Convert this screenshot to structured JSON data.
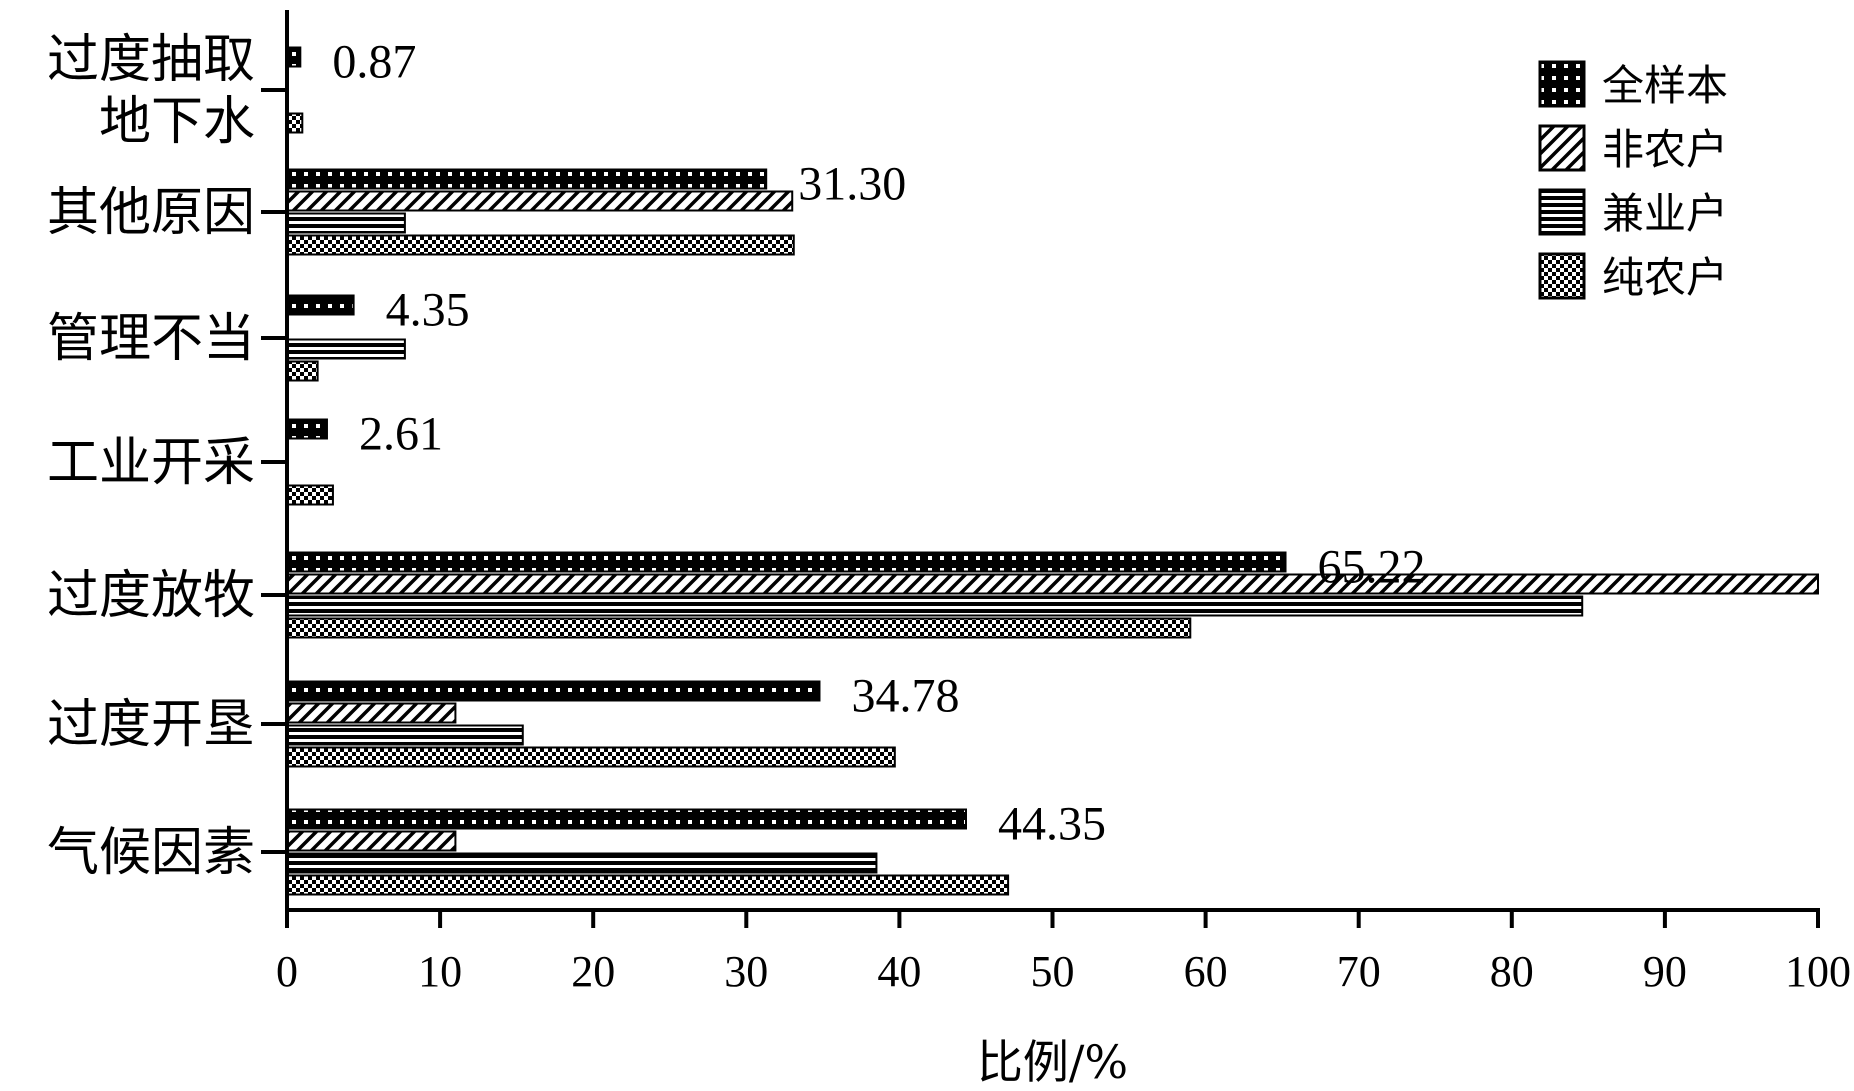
{
  "chart_data": {
    "type": "bar",
    "orientation": "horizontal",
    "categories": [
      "过度抽取\n地下水",
      "其他原因",
      "管理不当",
      "工业开采",
      "过度放牧",
      "过度开垦",
      "气候因素"
    ],
    "series": [
      {
        "name": "全样本",
        "values": [
          0.87,
          31.3,
          4.35,
          2.61,
          65.22,
          34.78,
          44.35
        ],
        "pattern": "dots-on-black"
      },
      {
        "name": "非农户",
        "values": [
          0,
          33.0,
          0,
          0,
          100.0,
          11.0,
          11.0
        ],
        "pattern": "diagonal-hatch"
      },
      {
        "name": "兼业户",
        "values": [
          0,
          7.7,
          7.7,
          0,
          84.6,
          15.4,
          38.5
        ],
        "pattern": "horizontal-lines"
      },
      {
        "name": "纯农户",
        "values": [
          1.0,
          33.1,
          2.0,
          3.0,
          59.0,
          39.7,
          47.1
        ],
        "pattern": "checker"
      }
    ],
    "data_labels": [
      "0.87",
      "31.30",
      "4.35",
      "2.61",
      "65.22",
      "34.78",
      "44.35"
    ],
    "xlabel": "比例/%",
    "ylabel": "",
    "xlim": [
      0,
      100
    ],
    "xticks": [
      "0",
      "10",
      "20",
      "30",
      "40",
      "50",
      "60",
      "70",
      "80",
      "90",
      "100"
    ],
    "legend_position": "top-right",
    "grid": false,
    "colors": {
      "ink": "#000000",
      "paper": "#ffffff"
    }
  }
}
